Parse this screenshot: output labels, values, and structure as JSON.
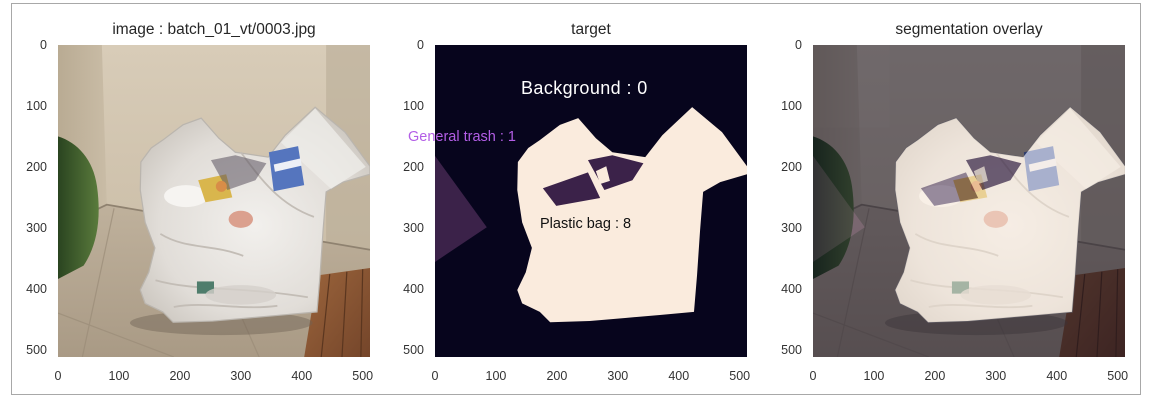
{
  "panels": [
    {
      "title": "image : batch_01_vt/0003.jpg"
    },
    {
      "title": "target"
    },
    {
      "title": "segmentation overlay"
    }
  ],
  "axes": {
    "range": [
      0,
      512
    ],
    "x_ticks": [
      0,
      100,
      200,
      300,
      400,
      500
    ],
    "y_ticks": [
      0,
      100,
      200,
      300,
      400,
      500
    ]
  },
  "target_labels": {
    "background": {
      "text": "Background : 0",
      "color": "#ffffff"
    },
    "general_trash": {
      "text": "General trash : 1",
      "color": "#b35ee6"
    },
    "plastic_bag": {
      "text": "Plastic bag : 8",
      "color": "#111111"
    }
  },
  "class_colors": {
    "background": "#07051d",
    "general_trash": "#3b2249",
    "plastic_bag": "#faebdd"
  },
  "overlay_alpha": 0.5
}
